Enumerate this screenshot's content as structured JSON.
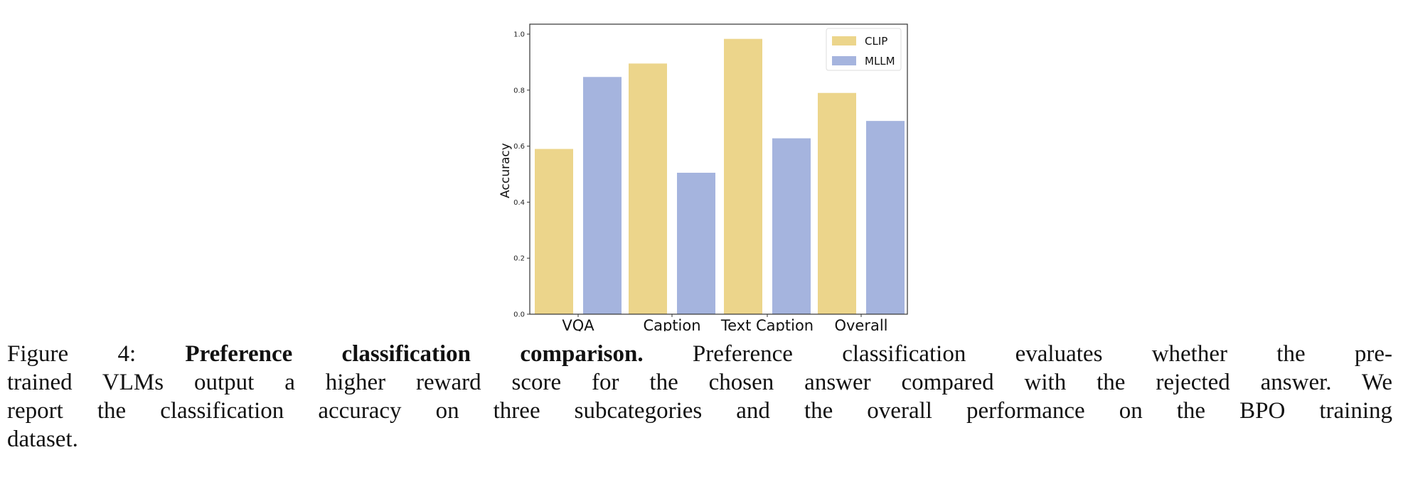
{
  "chart_data": {
    "type": "bar",
    "categories": [
      "VQA",
      "Caption",
      "Text Caption",
      "Overall"
    ],
    "series": [
      {
        "name": "CLIP",
        "color": "#ecd58b",
        "values": [
          0.59,
          0.895,
          0.983,
          0.79
        ]
      },
      {
        "name": "MLLM",
        "color": "#a5b4de",
        "values": [
          0.847,
          0.505,
          0.628,
          0.69
        ]
      }
    ],
    "title": "",
    "xlabel": "",
    "ylabel": "Accuracy",
    "ylim": [
      0,
      1.0
    ],
    "yticks": [
      "0.0",
      "0.2",
      "0.4",
      "0.6",
      "0.8",
      "1.0"
    ],
    "grid": false,
    "legend_position": "top-right"
  },
  "caption": {
    "label": "Figure 4:",
    "title": "Preference classification comparison.",
    "line1_rest": "Preference classification evaluates whether the pre-",
    "line2": "trained VLMs output a higher reward score for the chosen answer compared with the rejected answer. We",
    "line3": "report the classification accuracy on three subcategories and the overall performance on the BPO training",
    "line4": "dataset."
  }
}
